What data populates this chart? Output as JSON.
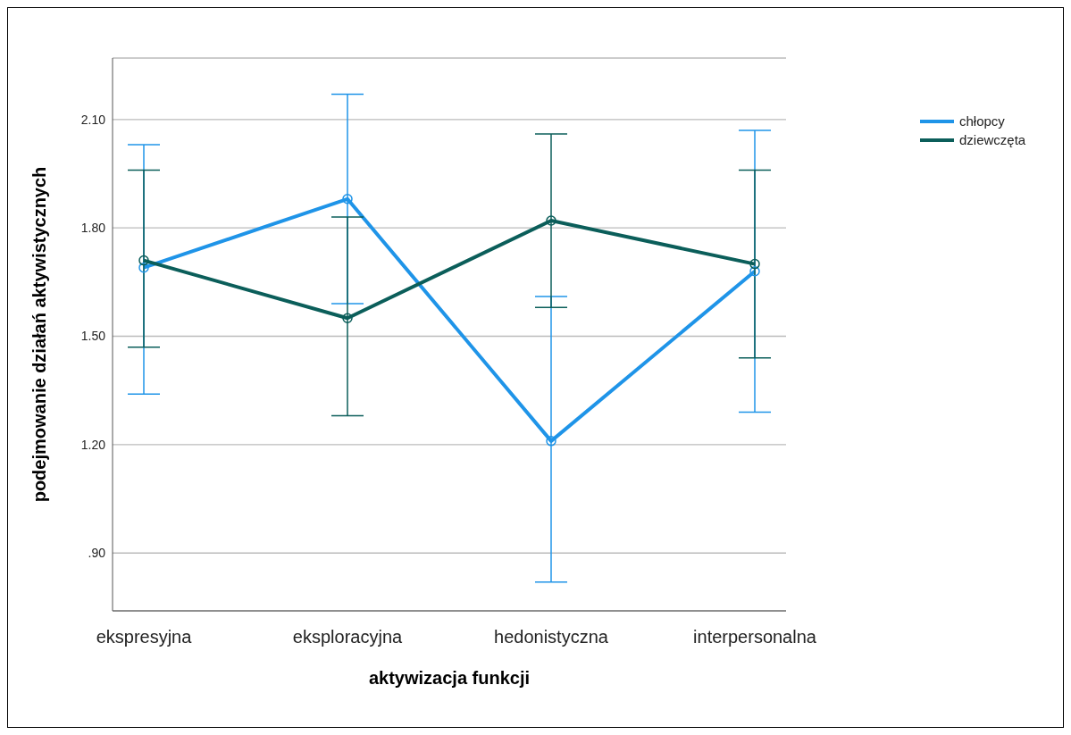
{
  "chart_data": {
    "type": "line",
    "xlabel": "aktywizacja funkcji",
    "ylabel": "podejmowanie działań aktywistycznych",
    "categories": [
      "ekspresyjna",
      "eksploracyjna",
      "hedonistyczna",
      "interpersonalna"
    ],
    "series": [
      {
        "name": "chłopcy",
        "color": "#1f94e8",
        "values": [
          1.69,
          1.88,
          1.21,
          1.68
        ],
        "errors": [
          [
            1.34,
            2.03
          ],
          [
            1.59,
            2.17
          ],
          [
            0.82,
            1.61
          ],
          [
            1.29,
            2.07
          ]
        ]
      },
      {
        "name": "dziewczęta",
        "color": "#0b5e5a",
        "values": [
          1.71,
          1.55,
          1.82,
          1.7
        ],
        "errors": [
          [
            1.47,
            1.96
          ],
          [
            1.28,
            1.83
          ],
          [
            1.58,
            2.06
          ],
          [
            1.44,
            1.96
          ]
        ]
      }
    ],
    "ylim": [
      0.74,
      2.27
    ],
    "yticks": [
      {
        "value": 0.9,
        "label": ".90"
      },
      {
        "value": 1.2,
        "label": "1.20"
      },
      {
        "value": 1.5,
        "label": "1.50"
      },
      {
        "value": 1.8,
        "label": "1.80"
      },
      {
        "value": 2.1,
        "label": "2.10"
      }
    ],
    "grid": "y",
    "legend": "top right",
    "marker": "circle",
    "line_style": "solid"
  }
}
